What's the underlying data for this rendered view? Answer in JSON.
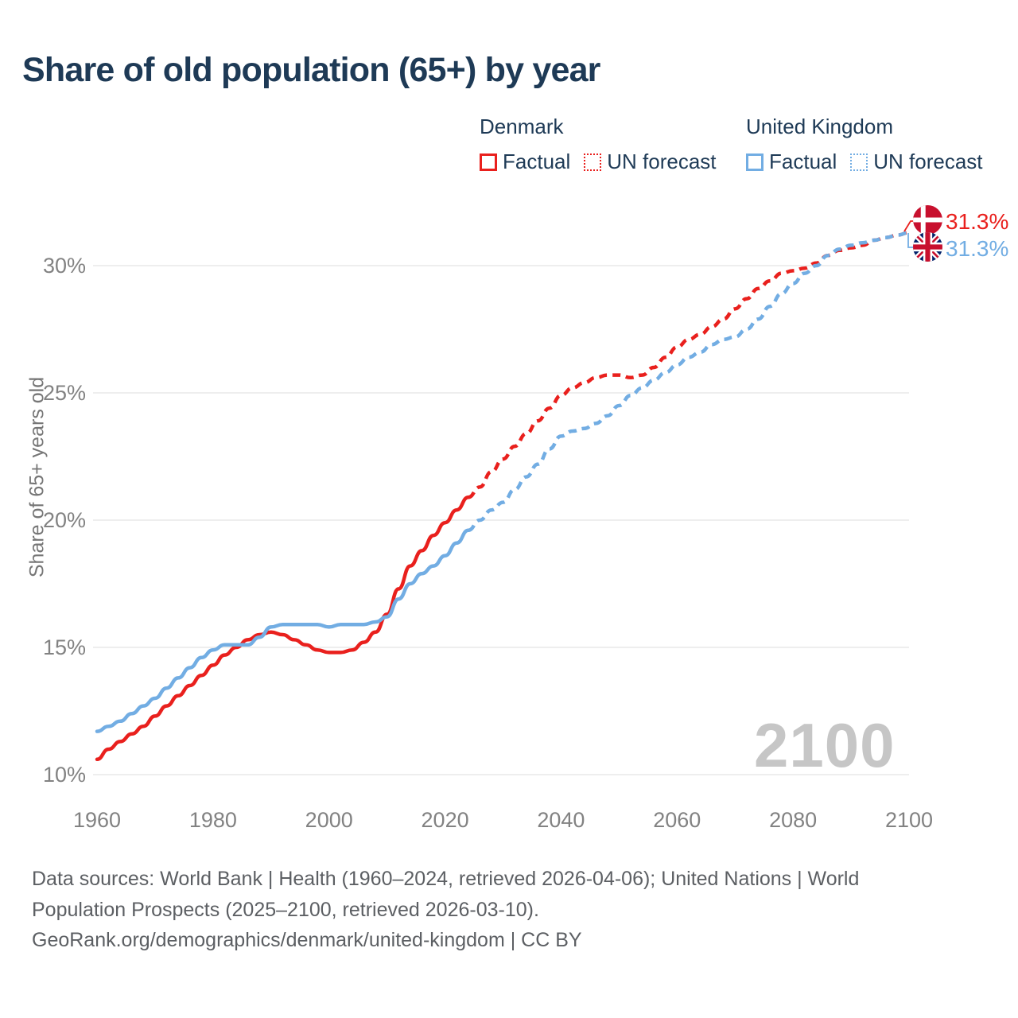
{
  "title": "Share of old population (65+) by year",
  "legend": {
    "denmark": {
      "name": "Denmark",
      "factual_label": "Factual",
      "forecast_label": "UN forecast"
    },
    "united_kingdom": {
      "name": "United Kingdom",
      "factual_label": "Factual",
      "forecast_label": "UN forecast"
    }
  },
  "end_labels": {
    "denmark": "31.3%",
    "united_kingdom": "31.3%"
  },
  "watermark": "2100",
  "footer": {
    "sources": "Data sources: World Bank | Health (1960–2024, retrieved 2026-04-06); United Nations | World Population Prospects (2025–2100, retrieved 2026-03-10).",
    "attribution": "GeoRank.org/demographics/denmark/united-kingdom | CC BY"
  },
  "colors": {
    "denmark": "#e9201d",
    "united_kingdom": "#72ade3",
    "title_text": "#1e3a56",
    "axis_text": "#828282",
    "footer_text": "#5c5f63",
    "gridline": "#e9e9e9",
    "watermark": "#c6c6c6",
    "denmark_flag_red": "#c8102e",
    "uk_flag_navy": "#012169",
    "uk_flag_red": "#c8102e"
  },
  "chart_data": {
    "type": "line",
    "title": "Share of old population (65+) by year",
    "xlabel": "",
    "ylabel": "Share of 65+ years old",
    "xlim": [
      1960,
      2100
    ],
    "ylim": [
      10,
      30
    ],
    "grid": true,
    "legend_position": "top-right",
    "x_ticks": [
      1960,
      1980,
      2000,
      2020,
      2040,
      2060,
      2080,
      2100
    ],
    "y_ticks": [
      "10%",
      "15%",
      "20%",
      "25%",
      "30%"
    ],
    "y_tick_values": [
      10,
      15,
      20,
      25,
      30
    ],
    "end_values": {
      "denmark": 31.3,
      "united_kingdom": 31.3
    },
    "series": [
      {
        "name": "Denmark — Factual",
        "country": "denmark",
        "style": "solid",
        "points": [
          [
            1960,
            10.6
          ],
          [
            1962,
            11.0
          ],
          [
            1964,
            11.3
          ],
          [
            1966,
            11.6
          ],
          [
            1968,
            11.9
          ],
          [
            1970,
            12.3
          ],
          [
            1972,
            12.7
          ],
          [
            1974,
            13.1
          ],
          [
            1976,
            13.5
          ],
          [
            1978,
            13.9
          ],
          [
            1980,
            14.3
          ],
          [
            1982,
            14.7
          ],
          [
            1984,
            15.0
          ],
          [
            1986,
            15.3
          ],
          [
            1988,
            15.5
          ],
          [
            1990,
            15.6
          ],
          [
            1992,
            15.5
          ],
          [
            1994,
            15.3
          ],
          [
            1996,
            15.1
          ],
          [
            1998,
            14.9
          ],
          [
            2000,
            14.8
          ],
          [
            2002,
            14.8
          ],
          [
            2004,
            14.9
          ],
          [
            2006,
            15.2
          ],
          [
            2008,
            15.6
          ],
          [
            2010,
            16.3
          ],
          [
            2012,
            17.3
          ],
          [
            2014,
            18.2
          ],
          [
            2016,
            18.8
          ],
          [
            2018,
            19.4
          ],
          [
            2020,
            19.9
          ],
          [
            2022,
            20.4
          ],
          [
            2024,
            20.9
          ]
        ]
      },
      {
        "name": "Denmark — UN forecast",
        "country": "denmark",
        "style": "dashed",
        "points": [
          [
            2024,
            20.9
          ],
          [
            2026,
            21.3
          ],
          [
            2028,
            21.9
          ],
          [
            2030,
            22.4
          ],
          [
            2032,
            22.9
          ],
          [
            2034,
            23.4
          ],
          [
            2036,
            23.9
          ],
          [
            2038,
            24.4
          ],
          [
            2040,
            24.9
          ],
          [
            2042,
            25.2
          ],
          [
            2044,
            25.4
          ],
          [
            2046,
            25.6
          ],
          [
            2048,
            25.7
          ],
          [
            2050,
            25.7
          ],
          [
            2052,
            25.6
          ],
          [
            2054,
            25.7
          ],
          [
            2056,
            26.0
          ],
          [
            2058,
            26.4
          ],
          [
            2060,
            26.8
          ],
          [
            2062,
            27.1
          ],
          [
            2064,
            27.3
          ],
          [
            2066,
            27.6
          ],
          [
            2068,
            27.9
          ],
          [
            2070,
            28.3
          ],
          [
            2072,
            28.7
          ],
          [
            2074,
            29.1
          ],
          [
            2076,
            29.4
          ],
          [
            2078,
            29.7
          ],
          [
            2080,
            29.8
          ],
          [
            2082,
            29.9
          ],
          [
            2084,
            30.1
          ],
          [
            2086,
            30.4
          ],
          [
            2088,
            30.6
          ],
          [
            2090,
            30.7
          ],
          [
            2092,
            30.8
          ],
          [
            2094,
            31.0
          ],
          [
            2096,
            31.1
          ],
          [
            2098,
            31.2
          ],
          [
            2100,
            31.3
          ]
        ]
      },
      {
        "name": "United Kingdom — Factual",
        "country": "united_kingdom",
        "style": "solid",
        "points": [
          [
            1960,
            11.7
          ],
          [
            1962,
            11.9
          ],
          [
            1964,
            12.1
          ],
          [
            1966,
            12.4
          ],
          [
            1968,
            12.7
          ],
          [
            1970,
            13.0
          ],
          [
            1972,
            13.4
          ],
          [
            1974,
            13.8
          ],
          [
            1976,
            14.2
          ],
          [
            1978,
            14.6
          ],
          [
            1980,
            14.9
          ],
          [
            1982,
            15.1
          ],
          [
            1984,
            15.1
          ],
          [
            1986,
            15.1
          ],
          [
            1988,
            15.4
          ],
          [
            1990,
            15.8
          ],
          [
            1992,
            15.9
          ],
          [
            1994,
            15.9
          ],
          [
            1996,
            15.9
          ],
          [
            1998,
            15.9
          ],
          [
            2000,
            15.8
          ],
          [
            2002,
            15.9
          ],
          [
            2004,
            15.9
          ],
          [
            2006,
            15.9
          ],
          [
            2008,
            16.0
          ],
          [
            2010,
            16.2
          ],
          [
            2012,
            16.9
          ],
          [
            2014,
            17.5
          ],
          [
            2016,
            17.9
          ],
          [
            2018,
            18.2
          ],
          [
            2020,
            18.6
          ],
          [
            2022,
            19.1
          ],
          [
            2024,
            19.6
          ]
        ]
      },
      {
        "name": "United Kingdom — UN forecast",
        "country": "united_kingdom",
        "style": "dashed",
        "points": [
          [
            2024,
            19.6
          ],
          [
            2026,
            20.0
          ],
          [
            2028,
            20.4
          ],
          [
            2030,
            20.7
          ],
          [
            2032,
            21.2
          ],
          [
            2034,
            21.7
          ],
          [
            2036,
            22.2
          ],
          [
            2038,
            22.8
          ],
          [
            2040,
            23.3
          ],
          [
            2042,
            23.5
          ],
          [
            2044,
            23.6
          ],
          [
            2046,
            23.8
          ],
          [
            2048,
            24.1
          ],
          [
            2050,
            24.5
          ],
          [
            2052,
            24.9
          ],
          [
            2054,
            25.2
          ],
          [
            2056,
            25.5
          ],
          [
            2058,
            25.8
          ],
          [
            2060,
            26.1
          ],
          [
            2062,
            26.4
          ],
          [
            2064,
            26.6
          ],
          [
            2066,
            26.9
          ],
          [
            2068,
            27.1
          ],
          [
            2070,
            27.2
          ],
          [
            2072,
            27.5
          ],
          [
            2074,
            27.9
          ],
          [
            2076,
            28.4
          ],
          [
            2078,
            28.9
          ],
          [
            2080,
            29.3
          ],
          [
            2082,
            29.7
          ],
          [
            2084,
            30.0
          ],
          [
            2086,
            30.4
          ],
          [
            2088,
            30.65
          ],
          [
            2090,
            30.8
          ],
          [
            2092,
            30.9
          ],
          [
            2094,
            31.0
          ],
          [
            2096,
            31.1
          ],
          [
            2098,
            31.2
          ],
          [
            2100,
            31.3
          ]
        ]
      }
    ]
  }
}
